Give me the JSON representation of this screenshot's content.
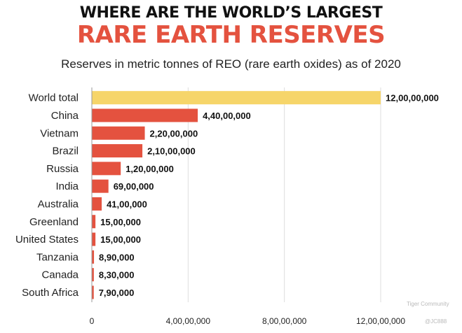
{
  "header": {
    "title_line1": "WHERE ARE THE WORLD’S LARGEST",
    "title_line2": "RARE EARTH RESERVES",
    "subtitle": "Reserves in metric tonnes of REO (rare earth oxides) as of 2020"
  },
  "watermark": {
    "line1": "Tiger Community",
    "line2": "@JC888"
  },
  "colors": {
    "highlight": "#f6d56a",
    "bar": "#e4523f",
    "grid": "#dddddd",
    "text": "#222222"
  },
  "chart_data": {
    "type": "bar",
    "orientation": "horizontal",
    "title": "RARE EARTH RESERVES",
    "subtitle": "Reserves in metric tonnes of REO (rare earth oxides) as of 2020",
    "categories": [
      "World total",
      "China",
      "Vietnam",
      "Brazil",
      "Russia",
      "India",
      "Australia",
      "Greenland",
      "United States",
      "Tanzania",
      "Canada",
      "South Africa"
    ],
    "values": [
      120000000,
      44000000,
      22000000,
      21000000,
      12000000,
      6900000,
      4100000,
      1500000,
      1500000,
      890000,
      830000,
      790000
    ],
    "value_labels": [
      "12,00,00,000",
      "4,40,00,000",
      "2,20,00,000",
      "2,10,00,000",
      "1,20,00,000",
      "69,00,000",
      "41,00,000",
      "15,00,000",
      "15,00,000",
      "8,90,000",
      "8,30,000",
      "7,90,000"
    ],
    "xlim": [
      0,
      120000000
    ],
    "xticks": [
      0,
      40000000,
      80000000,
      120000000
    ],
    "xtick_labels": [
      "0",
      "4,00,00,000",
      "8,00,00,000",
      "12,00,00,000"
    ],
    "grid": true,
    "highlight_category": "World total"
  }
}
